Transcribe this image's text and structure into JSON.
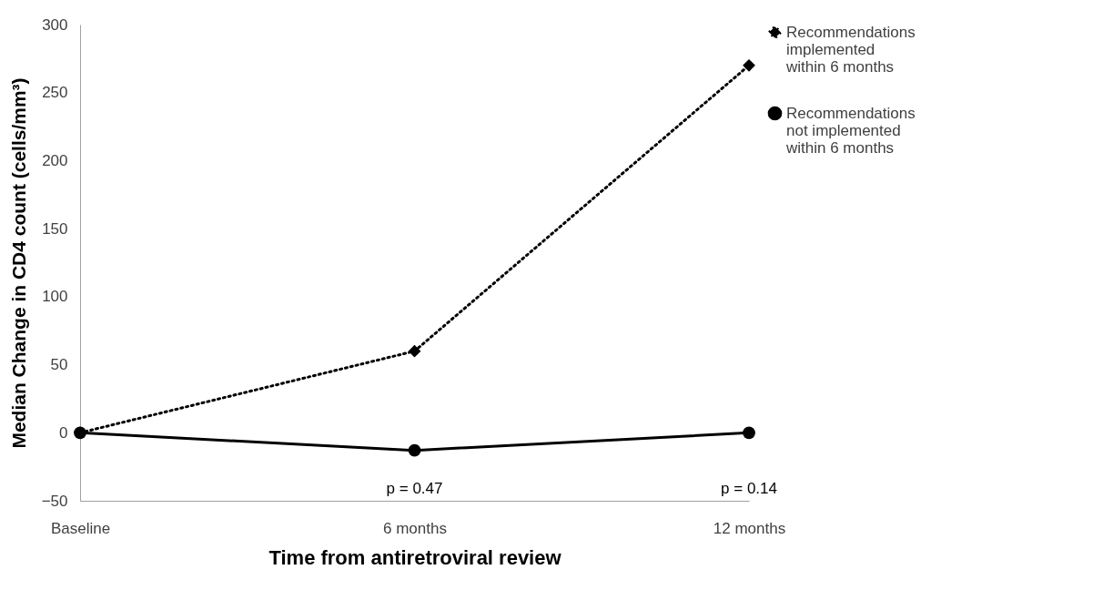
{
  "chart_data": {
    "type": "line",
    "xlabel": "Time from antiretroviral review",
    "ylabel": "Median Change in CD4 count (cells/mm³)",
    "categories": [
      "Baseline",
      "6 months",
      "12 months"
    ],
    "series": [
      {
        "name": "Recommendations implemented within 6 months",
        "color": "#000000",
        "values": [
          0,
          60,
          270
        ],
        "marker": "diamond",
        "line_style": "dotted"
      },
      {
        "name": "Recommendations not implemented within 6 months",
        "color": "#000000",
        "values": [
          0,
          -13,
          0
        ],
        "marker": "circle",
        "line_style": "solid"
      }
    ],
    "ylim": [
      -50,
      300
    ],
    "yticks": [
      -50,
      0,
      50,
      100,
      150,
      200,
      250,
      300
    ],
    "grid": false,
    "legend": "right",
    "annotations": [
      "p = 0.47",
      "p = 0.14"
    ]
  }
}
